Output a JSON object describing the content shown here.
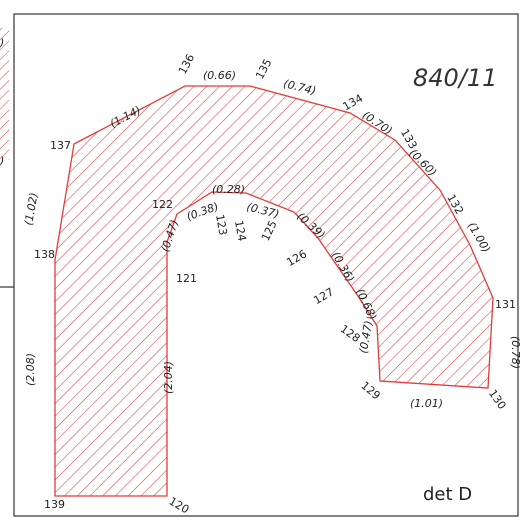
{
  "drawing": {
    "parcel_id": "840/11",
    "detail_label": "det D",
    "hatch_color": "#e23b3b",
    "frame_color": "#333333",
    "point_labels": [
      "137",
      "136",
      "135",
      "134",
      "133",
      "132",
      "131",
      "130",
      "129",
      "128",
      "127",
      "126",
      "125",
      "124",
      "123",
      "122",
      "121",
      "120",
      "139",
      "138"
    ],
    "edge_labels": [
      "(1.14)",
      "(0.66)",
      "(0.74)",
      "(0.70)",
      "(0.60)",
      "(1.00)",
      "(0.78)",
      "(1.01)",
      "(0.47)",
      "(0.68)",
      "(0.36)",
      "(0.39)",
      "(0.37)",
      "(0.28)",
      "(0.38)",
      "(0.47)",
      "(2.04)",
      "(2.08)",
      "(1.02)"
    ],
    "left_fragment_labels": [
      ")",
      ")"
    ]
  }
}
